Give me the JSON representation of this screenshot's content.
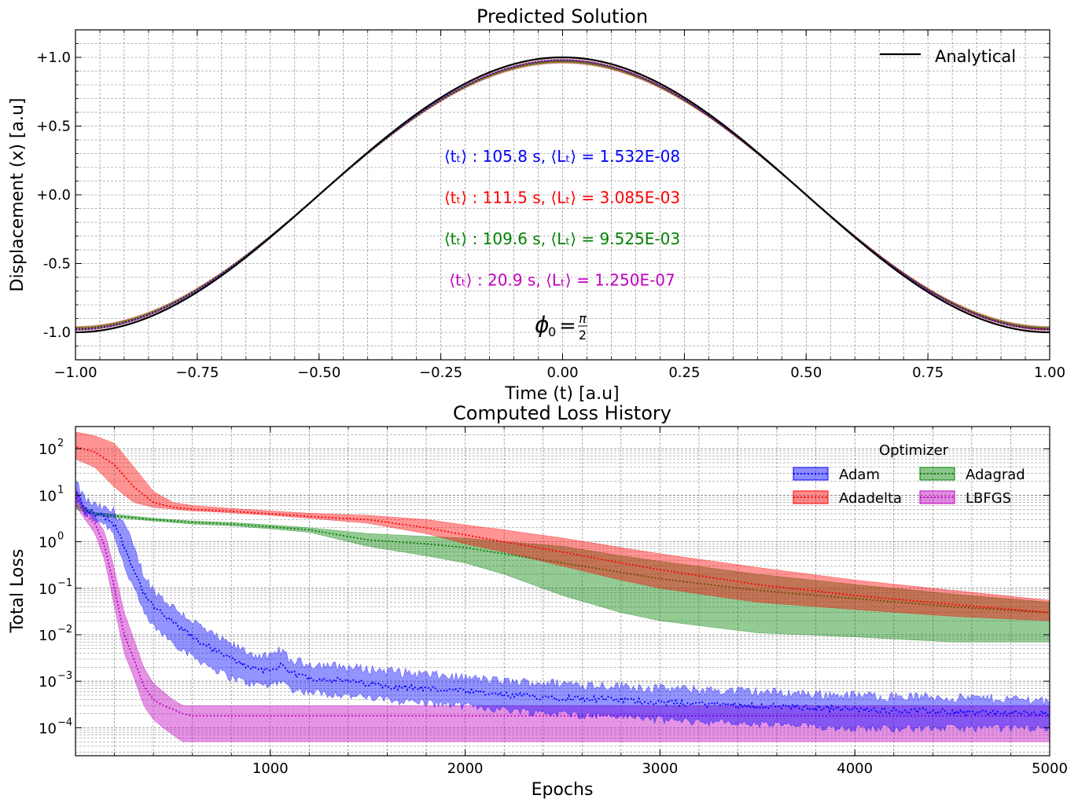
{
  "colors": {
    "adam": "#0000ff",
    "adadelta": "#ff0000",
    "adagrad": "#008000",
    "lbfgs": "#c000c0",
    "analytical": "#000000",
    "grid": "#7a7a7a"
  },
  "chart_data": [
    {
      "type": "line",
      "title": "Predicted Solution",
      "xlabel": "Time (t) [a.u]",
      "ylabel": "Displacement (x) [a.u]",
      "xlim": [
        -1.0,
        1.0
      ],
      "ylim": [
        -1.2,
        1.2
      ],
      "xticks": [
        -1.0,
        -0.75,
        -0.5,
        -0.25,
        0.0,
        0.25,
        0.5,
        0.75,
        1.0
      ],
      "xtick_labels": [
        "−1.00",
        "−0.75",
        "−0.50",
        "−0.25",
        "0.00",
        "0.25",
        "0.50",
        "0.75",
        "1.00"
      ],
      "yticks": [
        1.0,
        0.5,
        0.0,
        -0.5,
        -1.0
      ],
      "ytick_labels": [
        "+1.0",
        "+0.5",
        "+0.0",
        "-0.5",
        "-1.0"
      ],
      "grid": true,
      "legend": {
        "position": "top-right",
        "entries": [
          "Analytical"
        ]
      },
      "series": [
        {
          "name": "Analytical",
          "function": "x = cos(pi * t)",
          "amplitude": 1.0,
          "color": "#000000"
        },
        {
          "function": "x = cos(pi * t)",
          "amplitude": 0.98,
          "color": "#0000ff"
        },
        {
          "function": "x = cos(pi * t)",
          "amplitude": 0.975,
          "color": "#ff0000"
        },
        {
          "function": "x = cos(pi * t)",
          "amplitude": 0.97,
          "color": "#008000"
        }
      ],
      "annotations": [
        {
          "t_label": "⟨tₜ⟩ : 105.8 s, ",
          "l_label": "⟨Lₜ⟩ = 1.532E-08",
          "color": "#0000ff",
          "y": 0.24
        },
        {
          "t_label": "⟨tₜ⟩ : 111.5 s, ",
          "l_label": "⟨Lₜ⟩ = 3.085E-03",
          "color": "#ff0000",
          "y": -0.06
        },
        {
          "t_label": "⟨tₜ⟩ : 109.6 s, ",
          "l_label": "⟨Lₜ⟩ = 9.525E-03",
          "color": "#008000",
          "y": -0.36
        },
        {
          "t_label": "⟨tₜ⟩ : 20.9 s, ",
          "l_label": "⟨Lₜ⟩ = 1.250E-07",
          "color": "#c000c0",
          "y": -0.66
        }
      ],
      "phase_label": {
        "phi": "ϕ",
        "sub": "0",
        "num": "π",
        "den": "2"
      }
    },
    {
      "type": "line",
      "title": "Computed Loss History",
      "xlabel": "Epochs",
      "ylabel": "Total Loss",
      "xlim": [
        0,
        5000
      ],
      "ylim": [
        2.5e-05,
        300
      ],
      "yscale": "log",
      "xticks": [
        1000,
        2000,
        3000,
        4000,
        5000
      ],
      "xtick_labels": [
        "1000",
        "2000",
        "3000",
        "4000",
        "5000"
      ],
      "yticks_exp": [
        2,
        1,
        0,
        -1,
        -2,
        -3,
        -4
      ],
      "grid": true,
      "legend": {
        "title": "Optimizer",
        "position": "top-right",
        "entries": [
          "Adam",
          "Adadelta",
          "Adagrad",
          "LBFGS"
        ]
      },
      "series": [
        {
          "name": "Adam",
          "color": "#0000ff",
          "x": [
            0,
            50,
            100,
            150,
            200,
            250,
            300,
            350,
            400,
            500,
            600,
            700,
            800,
            900,
            1000,
            1050,
            1100,
            1200,
            1400,
            1600,
            1800,
            2000,
            2200,
            2500,
            2800,
            3000,
            3500,
            4000,
            4500,
            5000
          ],
          "mean": [
            12,
            5,
            4,
            3.5,
            2.5,
            0.8,
            0.25,
            0.08,
            0.04,
            0.018,
            0.009,
            0.005,
            0.003,
            0.002,
            0.0017,
            0.0022,
            0.0015,
            0.0012,
            0.001,
            0.0008,
            0.0007,
            0.0006,
            0.0005,
            0.00045,
            0.0004,
            0.00035,
            0.0003,
            0.00025,
            0.00022,
            0.0002
          ],
          "lower": [
            8,
            4,
            3,
            2.5,
            1.5,
            0.3,
            0.1,
            0.03,
            0.015,
            0.007,
            0.0035,
            0.002,
            0.0012,
            0.0009,
            0.0008,
            0.0011,
            0.0007,
            0.0006,
            0.0005,
            0.0004,
            0.00035,
            0.0003,
            0.00025,
            0.0002,
            0.00018,
            0.00015,
            0.00012,
            0.0001,
            0.0001,
            0.0001
          ],
          "upper": [
            20,
            8,
            6,
            5,
            4.5,
            2.5,
            0.7,
            0.2,
            0.09,
            0.04,
            0.02,
            0.01,
            0.006,
            0.004,
            0.0032,
            0.005,
            0.0028,
            0.0024,
            0.002,
            0.0017,
            0.0014,
            0.0012,
            0.001,
            0.0009,
            0.0008,
            0.0007,
            0.0006,
            0.0005,
            0.00045,
            0.0004
          ]
        },
        {
          "name": "Adadelta",
          "color": "#ff0000",
          "x": [
            0,
            100,
            200,
            300,
            400,
            500,
            600,
            800,
            1000,
            1200,
            1500,
            1800,
            2000,
            2200,
            2500,
            2800,
            3000,
            3500,
            4000,
            4500,
            5000
          ],
          "mean": [
            110,
            85,
            45,
            15,
            7,
            5.5,
            5,
            4.5,
            4,
            3.5,
            3,
            2,
            1.4,
            1,
            0.6,
            0.35,
            0.25,
            0.12,
            0.07,
            0.045,
            0.03
          ],
          "lower": [
            60,
            40,
            15,
            7,
            5.5,
            5,
            4.6,
            4.2,
            3.7,
            3.2,
            2.5,
            1.5,
            0.9,
            0.6,
            0.3,
            0.15,
            0.1,
            0.05,
            0.035,
            0.025,
            0.02
          ],
          "upper": [
            230,
            190,
            130,
            40,
            12,
            7,
            6,
            5.2,
            4.6,
            4.1,
            3.7,
            3,
            2.3,
            1.8,
            1.2,
            0.75,
            0.55,
            0.28,
            0.15,
            0.09,
            0.055
          ]
        },
        {
          "name": "Adagrad",
          "color": "#008000",
          "x": [
            0,
            100,
            200,
            400,
            600,
            800,
            1000,
            1200,
            1500,
            1800,
            2000,
            2200,
            2500,
            2800,
            3000,
            3500,
            4000,
            4500,
            5000
          ],
          "mean": [
            6,
            4,
            3.6,
            3,
            2.6,
            2.4,
            2.1,
            1.8,
            1.1,
            0.9,
            0.75,
            0.55,
            0.35,
            0.22,
            0.16,
            0.09,
            0.06,
            0.04,
            0.03
          ],
          "lower": [
            5,
            3.7,
            3.3,
            2.8,
            2.4,
            2.2,
            1.9,
            1.6,
            0.8,
            0.5,
            0.35,
            0.2,
            0.07,
            0.03,
            0.02,
            0.011,
            0.009,
            0.007,
            0.007
          ],
          "upper": [
            7,
            4.3,
            3.9,
            3.2,
            2.8,
            2.6,
            2.3,
            2,
            1.5,
            1.3,
            1.2,
            1,
            0.8,
            0.5,
            0.38,
            0.2,
            0.12,
            0.075,
            0.05
          ]
        },
        {
          "name": "LBFGS",
          "color": "#c000c0",
          "x": [
            0,
            50,
            100,
            150,
            200,
            250,
            300,
            350,
            400,
            450,
            500,
            550,
            600,
            800,
            1000,
            2000,
            3000,
            4000,
            5000
          ],
          "mean": [
            10,
            4,
            2.5,
            0.8,
            0.1,
            0.01,
            0.003,
            0.0008,
            0.0004,
            0.0003,
            0.00025,
            0.0002,
            0.00018,
            0.00018,
            0.00018,
            0.00018,
            0.00018,
            0.00018,
            0.00018
          ],
          "lower": [
            6,
            3,
            1.5,
            0.4,
            0.04,
            0.004,
            0.0012,
            0.0003,
            0.00015,
            0.0001,
            7e-05,
            5e-05,
            5e-05,
            5e-05,
            5e-05,
            5e-05,
            5e-05,
            5e-05,
            5e-05
          ],
          "upper": [
            15,
            5,
            3.5,
            1.6,
            0.25,
            0.03,
            0.008,
            0.002,
            0.0009,
            0.0006,
            0.0004,
            0.0003,
            0.0003,
            0.0003,
            0.0003,
            0.0003,
            0.0003,
            0.0003,
            0.0003
          ]
        }
      ]
    }
  ]
}
